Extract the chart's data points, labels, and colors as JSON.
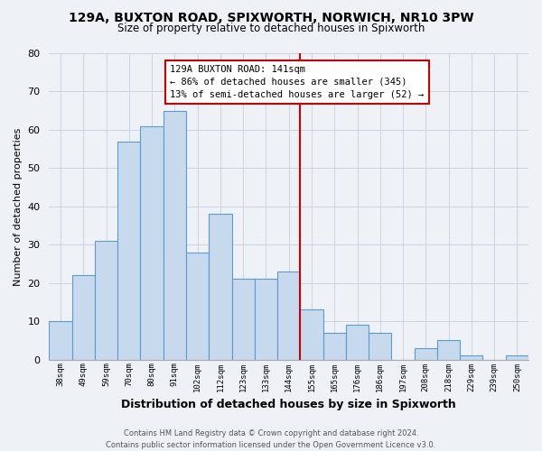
{
  "title": "129A, BUXTON ROAD, SPIXWORTH, NORWICH, NR10 3PW",
  "subtitle": "Size of property relative to detached houses in Spixworth",
  "xlabel": "Distribution of detached houses by size in Spixworth",
  "ylabel": "Number of detached properties",
  "bar_labels": [
    "38sqm",
    "49sqm",
    "59sqm",
    "70sqm",
    "80sqm",
    "91sqm",
    "102sqm",
    "112sqm",
    "123sqm",
    "133sqm",
    "144sqm",
    "155sqm",
    "165sqm",
    "176sqm",
    "186sqm",
    "197sqm",
    "208sqm",
    "218sqm",
    "229sqm",
    "239sqm",
    "250sqm"
  ],
  "bar_values": [
    10,
    22,
    31,
    57,
    61,
    65,
    28,
    38,
    21,
    21,
    23,
    13,
    7,
    9,
    7,
    0,
    3,
    5,
    1,
    0,
    1
  ],
  "bar_color": "#c6d9ed",
  "bar_edge_color": "#5b9bd5",
  "bg_color": "#eef2f7",
  "annotation_title": "129A BUXTON ROAD: 141sqm",
  "annotation_line1": "← 86% of detached houses are smaller (345)",
  "annotation_line2": "13% of semi-detached houses are larger (52) →",
  "vline_bar_index": 10,
  "vline_color": "#cc0000",
  "ylim": [
    0,
    80
  ],
  "yticks": [
    0,
    10,
    20,
    30,
    40,
    50,
    60,
    70,
    80
  ],
  "footnote1": "Contains HM Land Registry data © Crown copyright and database right 2024.",
  "footnote2": "Contains public sector information licensed under the Open Government Licence v3.0."
}
